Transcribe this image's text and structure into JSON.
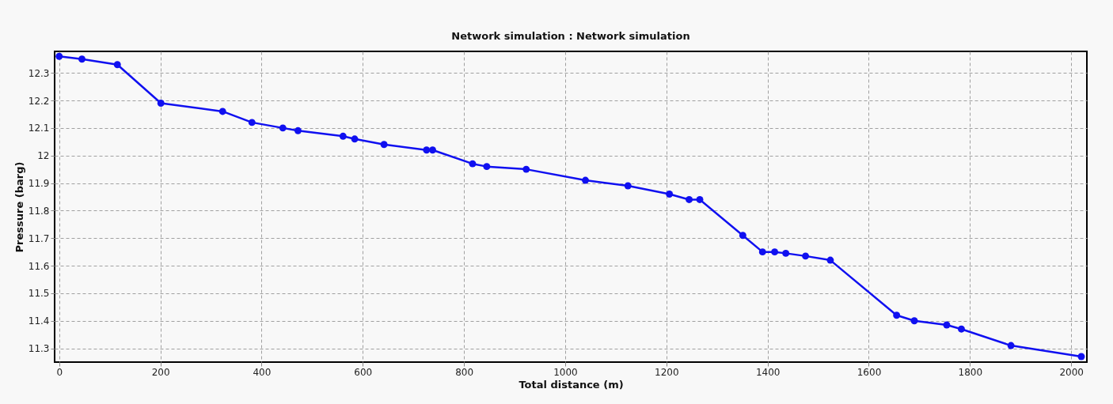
{
  "chart_data": {
    "type": "line",
    "title": "Network simulation : Network simulation",
    "xlabel": "Total distance (m)",
    "ylabel": "Pressure (barg)",
    "x": [
      0,
      45,
      115,
      201,
      323,
      381,
      442,
      472,
      561,
      584,
      642,
      726,
      738,
      817,
      845,
      923,
      1040,
      1124,
      1206,
      1245,
      1266,
      1351,
      1390,
      1414,
      1436,
      1475,
      1524,
      1655,
      1690,
      1754,
      1783,
      1881,
      2020
    ],
    "series": [
      {
        "color": "#1010f0",
        "values": [
          12.36,
          12.35,
          12.33,
          12.19,
          12.16,
          12.12,
          12.1,
          12.09,
          12.07,
          12.06,
          12.04,
          12.02,
          12.02,
          11.97,
          11.96,
          11.95,
          11.91,
          11.89,
          11.86,
          11.84,
          11.84,
          11.71,
          11.65,
          11.65,
          11.645,
          11.635,
          11.62,
          11.42,
          11.4,
          11.385,
          11.37,
          11.31,
          11.27
        ]
      }
    ],
    "xlim": [
      -9,
      2031
    ],
    "ylim": [
      11.25,
      12.378
    ],
    "xticks": [
      0,
      200,
      400,
      600,
      800,
      1000,
      1200,
      1400,
      1600,
      1800,
      2000
    ],
    "yticks": [
      11.3,
      11.4,
      11.5,
      11.6,
      11.7,
      11.8,
      11.9,
      12,
      12.1,
      12.2,
      12.3
    ],
    "grid": true,
    "marker": "circle",
    "line_style": "solid"
  }
}
